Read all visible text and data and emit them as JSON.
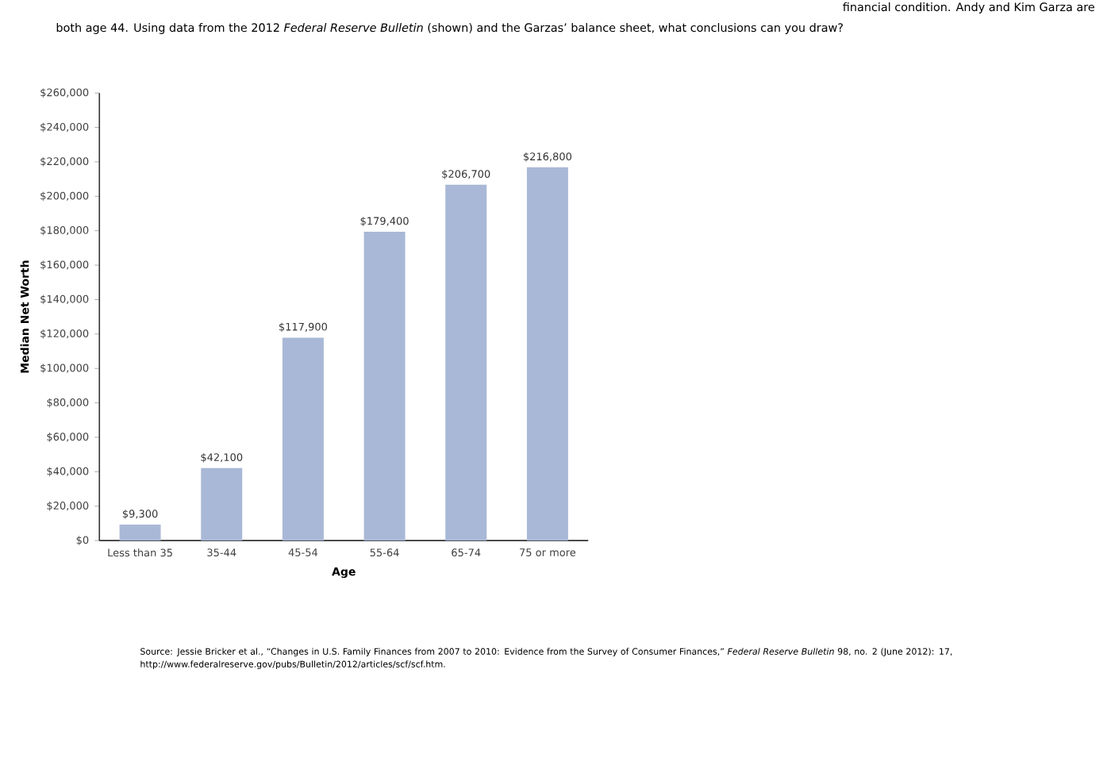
{
  "chart_data": {
    "type": "bar",
    "xlabel": "Age",
    "ylabel": "Median Net Worth",
    "categories": [
      "Less than 35",
      "35-44",
      "45-54",
      "55-64",
      "65-74",
      "75 or more"
    ],
    "values": [
      9300,
      42100,
      117900,
      179400,
      206700,
      216800
    ],
    "value_labels": [
      "$9,300",
      "$42,100",
      "$117,900",
      "$179,400",
      "$206,700",
      "$216,800"
    ],
    "color": "#a9b8d6",
    "ylim": [
      0,
      260000
    ],
    "yticks": [
      {
        "value": 0,
        "label": "$0"
      },
      {
        "value": 20000,
        "label": "$20,000"
      },
      {
        "value": 40000,
        "label": "$40,000"
      },
      {
        "value": 60000,
        "label": "$60,000"
      },
      {
        "value": 80000,
        "label": "$80,000"
      },
      {
        "value": 100000,
        "label": "$100,000"
      },
      {
        "value": 120000,
        "label": "$120,000"
      },
      {
        "value": 140000,
        "label": "$140,000"
      },
      {
        "value": 160000,
        "label": "$160,000"
      },
      {
        "value": 180000,
        "label": "$180,000"
      },
      {
        "value": 200000,
        "label": "$200,000"
      },
      {
        "value": 220000,
        "label": "$220,000"
      },
      {
        "value": 240000,
        "label": "$240,000"
      },
      {
        "value": 260000,
        "label": "$260,000"
      }
    ],
    "annotations": [
      "financial condition. Andy and Kim Garza are",
      "both age 44. Using data from the 2012 *Federal Reserve Bulletin* (shown) and the Garzas’ balance sheet, what conclusions can you draw?",
      "Source: Jessie Bricker et al., “Changes in U.S. Family Finances from 2007 to 2010: Evidence from the Survey of Consumer Finances,” *Federal Reserve Bulletin* 98, no. 2 (June 2012): 17, http://www.federalreserve.gov/pubs/Bulletin/2012/articles/scf/scf.htm."
    ]
  }
}
